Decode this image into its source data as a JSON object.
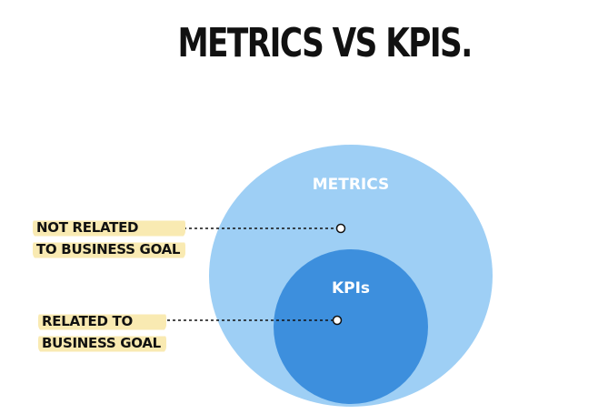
{
  "title": "METRICS VS KPIS.",
  "outer_circle": {
    "label": "METRICS",
    "color": "#9ecff5"
  },
  "inner_circle": {
    "label": "KPIs",
    "color": "#3d8fdd"
  },
  "callouts": [
    {
      "line1": "NOT RELATED",
      "line2": "TO BUSINESS GOAL",
      "highlight": "#f9eab2"
    },
    {
      "line1": "RELATED TO",
      "line2": "BUSINESS GOAL",
      "highlight": "#f9eab2"
    }
  ]
}
